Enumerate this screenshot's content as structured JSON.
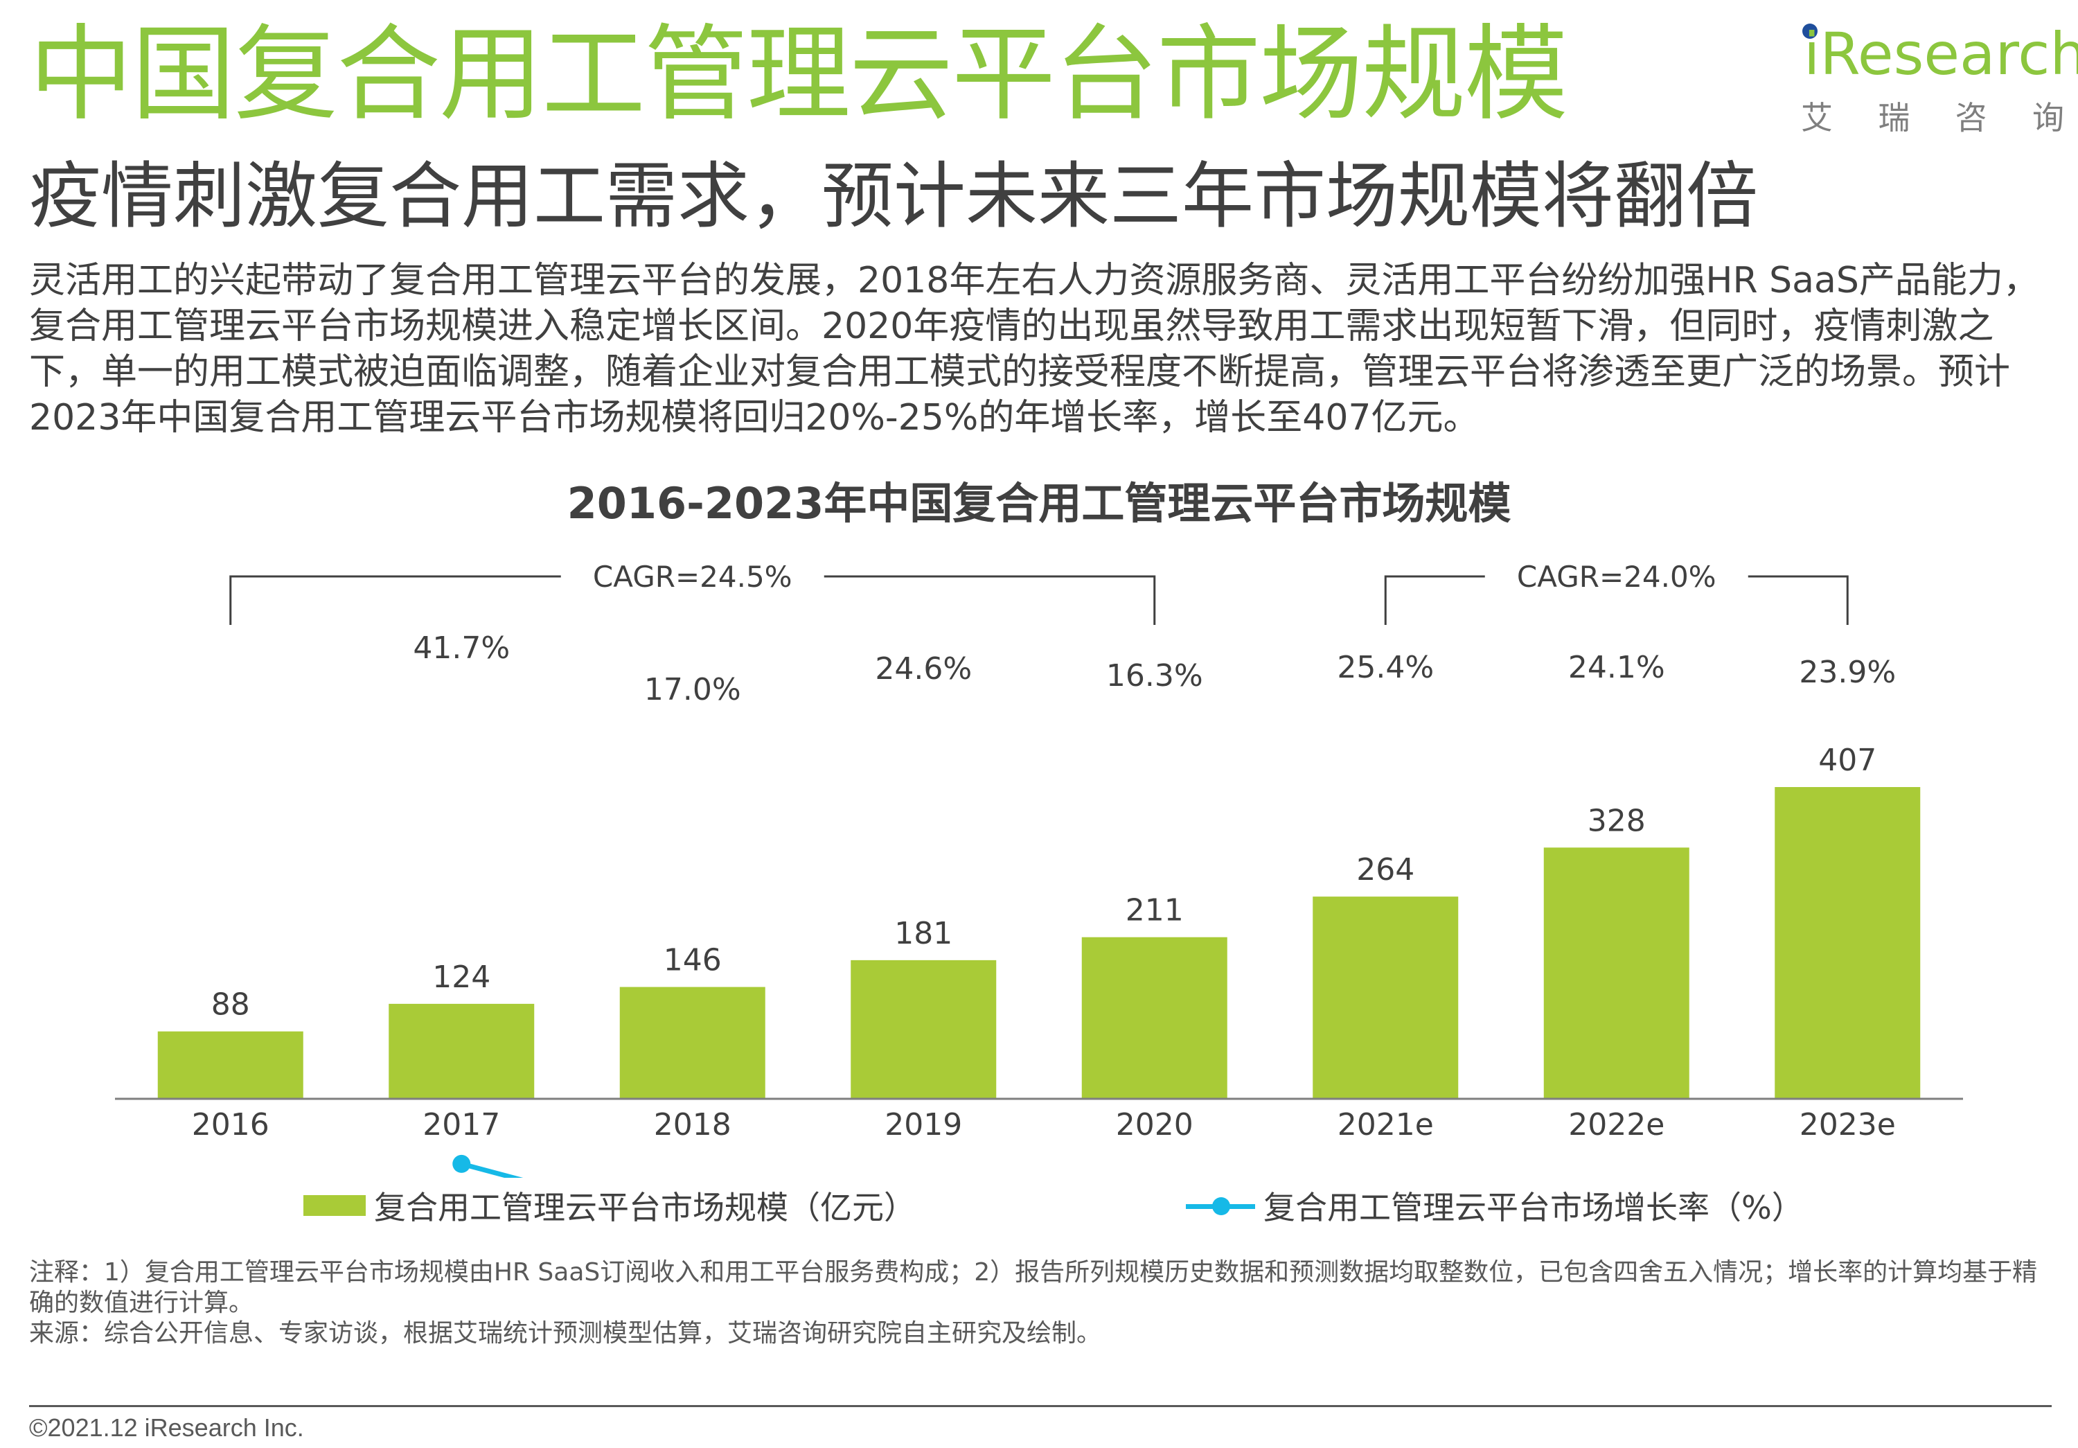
{
  "header": {
    "title": "中国复合用工管理云平台市场规模",
    "subtitle": "疫情刺激复合用工需求，预计未来三年市场规模将翻倍",
    "body": "灵活用工的兴起带动了复合用工管理云平台的发展，2018年左右人力资源服务商、灵活用工平台纷纷加强HR SaaS产品能力，复合用工管理云平台市场规模进入稳定增长区间。2020年疫情的出现虽然导致用工需求出现短暂下滑，但同时，疫情刺激之下，单一的用工模式被迫面临调整，随着企业对复合用工模式的接受程度不断提高，管理云平台将渗透至更广泛的场景。预计2023年中国复合用工管理云平台市场规模将回归20%-25%的年增长率，增长至407亿元。"
  },
  "logo": {
    "name": "iResearch",
    "chars": [
      "艾",
      "瑞",
      "咨",
      "询"
    ]
  },
  "chart_data": {
    "type": "bar",
    "title": "2016-2023年中国复合用工管理云平台市场规模",
    "categories": [
      "2016",
      "2017",
      "2018",
      "2019",
      "2020",
      "2021e",
      "2022e",
      "2023e"
    ],
    "series": [
      {
        "name": "复合用工管理云平台市场规模（亿元）",
        "type": "bar",
        "color": "#a9cb37",
        "values": [
          88,
          124,
          146,
          181,
          211,
          264,
          328,
          407
        ],
        "labels": [
          "88",
          "124",
          "146",
          "181",
          "211",
          "264",
          "328",
          "407"
        ]
      },
      {
        "name": "复合用工管理云平台市场增长率（%）",
        "type": "line",
        "color": "#16b9e7",
        "values": [
          null,
          41.7,
          17.0,
          24.6,
          16.3,
          25.4,
          24.1,
          23.9
        ],
        "labels": [
          "",
          "41.7%",
          "17.0%",
          "24.6%",
          "16.3%",
          "25.4%",
          "24.1%",
          "23.9%"
        ]
      }
    ],
    "annotations": [
      {
        "text": "CAGR=24.5%",
        "from": "2016",
        "to": "2020"
      },
      {
        "text": "CAGR=24.0%",
        "from": "2021e",
        "to": "2023e"
      }
    ],
    "legend_position": "bottom",
    "grid": false
  },
  "notes": {
    "note": "注释：1）复合用工管理云平台市场规模由HR SaaS订阅收入和用工平台服务费构成；2）报告所列规模历史数据和预测数据均取整数位，已包含四舍五入情况；增长率的计算均基于精确的数值进行计算。",
    "source": "来源：综合公开信息、专家访谈，根据艾瑞统计预测模型估算，艾瑞咨询研究院自主研究及绘制。"
  },
  "footer": {
    "copyright": "©2021.12 iResearch Inc."
  }
}
